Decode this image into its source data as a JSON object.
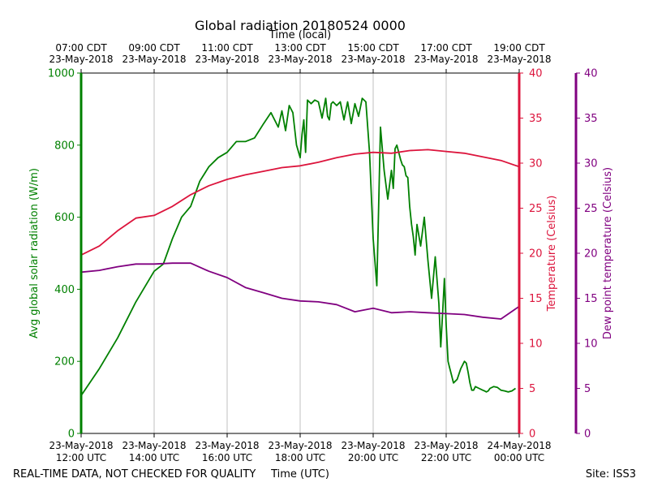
{
  "chart_data": {
    "type": "line",
    "title": "Global radiation 20180524 0000",
    "top_axis_label": "Time (local)",
    "xlabel": "Time (UTC)",
    "footer_left": "REAL-TIME DATA, NOT CHECKED FOR QUALITY",
    "footer_right": "Site: ISS3",
    "x_unit": "hours UTC",
    "xlim": [
      12,
      24
    ],
    "x_ticks": [
      {
        "x": 12,
        "bottom": [
          "23-May-2018",
          "12:00 UTC"
        ],
        "top": [
          "07:00 CDT",
          "23-May-2018"
        ]
      },
      {
        "x": 14,
        "bottom": [
          "23-May-2018",
          "14:00 UTC"
        ],
        "top": [
          "09:00 CDT",
          "23-May-2018"
        ]
      },
      {
        "x": 16,
        "bottom": [
          "23-May-2018",
          "16:00 UTC"
        ],
        "top": [
          "11:00 CDT",
          "23-May-2018"
        ]
      },
      {
        "x": 18,
        "bottom": [
          "23-May-2018",
          "18:00 UTC"
        ],
        "top": [
          "13:00 CDT",
          "23-May-2018"
        ]
      },
      {
        "x": 20,
        "bottom": [
          "23-May-2018",
          "20:00 UTC"
        ],
        "top": [
          "15:00 CDT",
          "23-May-2018"
        ]
      },
      {
        "x": 22,
        "bottom": [
          "23-May-2018",
          "22:00 UTC"
        ],
        "top": [
          "17:00 CDT",
          "23-May-2018"
        ]
      },
      {
        "x": 24,
        "bottom": [
          "24-May-2018",
          "00:00 UTC"
        ],
        "top": [
          "19:00 CDT",
          "23-May-2018"
        ]
      }
    ],
    "grid": "vertical",
    "axes": {
      "radiation": {
        "label": "Avg global solar radiation (W/m)",
        "ylim": [
          0,
          1000
        ],
        "ticks": [
          0,
          200,
          400,
          600,
          800,
          1000
        ],
        "color": "#008000",
        "side": "left"
      },
      "temperature": {
        "label": "Temperature (Celsius)",
        "ylim": [
          0,
          40
        ],
        "ticks": [
          0,
          5,
          10,
          15,
          20,
          25,
          30,
          35,
          40
        ],
        "color": "#dc143c",
        "side": "right"
      },
      "dewpoint": {
        "label": "Dew point temperature (Celsius)",
        "ylim": [
          0,
          40
        ],
        "ticks": [
          0,
          5,
          10,
          15,
          20,
          25,
          30,
          35,
          40
        ],
        "color": "#800080",
        "side": "right-outer"
      }
    },
    "series": [
      {
        "axis": "radiation",
        "color": "#008000",
        "x": [
          12.0,
          12.5,
          13.0,
          13.5,
          14.0,
          14.25,
          14.5,
          14.75,
          15.0,
          15.25,
          15.5,
          15.75,
          16.0,
          16.25,
          16.5,
          16.75,
          17.0,
          17.2,
          17.4,
          17.5,
          17.6,
          17.7,
          17.8,
          17.9,
          18.0,
          18.05,
          18.1,
          18.15,
          18.2,
          18.3,
          18.4,
          18.5,
          18.6,
          18.7,
          18.75,
          18.8,
          18.85,
          18.9,
          19.0,
          19.1,
          19.2,
          19.3,
          19.4,
          19.5,
          19.6,
          19.7,
          19.8,
          19.9,
          20.0,
          20.1,
          20.2,
          20.3,
          20.4,
          20.5,
          20.55,
          20.6,
          20.65,
          20.7,
          20.75,
          20.8,
          20.85,
          20.9,
          20.95,
          21.0,
          21.05,
          21.1,
          21.15,
          21.2,
          21.3,
          21.4,
          21.5,
          21.6,
          21.7,
          21.8,
          21.85,
          21.9,
          21.95,
          22.0,
          22.05,
          22.1,
          22.15,
          22.2,
          22.3,
          22.4,
          22.5,
          22.55,
          22.6,
          22.65,
          22.7,
          22.75,
          22.8,
          22.9,
          23.0,
          23.05,
          23.1,
          23.15,
          23.2,
          23.3,
          23.4,
          23.5,
          23.6,
          23.7,
          23.8,
          23.9
        ],
        "values": [
          105,
          180,
          265,
          365,
          450,
          470,
          540,
          600,
          630,
          700,
          740,
          765,
          780,
          810,
          810,
          820,
          860,
          890,
          850,
          895,
          840,
          910,
          890,
          800,
          765,
          830,
          870,
          780,
          925,
          915,
          925,
          920,
          875,
          930,
          880,
          870,
          915,
          920,
          910,
          920,
          870,
          920,
          860,
          915,
          880,
          930,
          920,
          780,
          540,
          410,
          850,
          730,
          650,
          730,
          680,
          790,
          800,
          780,
          760,
          745,
          740,
          715,
          710,
          630,
          580,
          545,
          495,
          580,
          520,
          600,
          480,
          375,
          490,
          360,
          240,
          330,
          430,
          300,
          200,
          180,
          160,
          140,
          150,
          180,
          200,
          195,
          170,
          140,
          120,
          120,
          130,
          125,
          120,
          118,
          115,
          118,
          125,
          130,
          128,
          120,
          118,
          115,
          118,
          125
        ],
        "values_note": "smoothed"
      },
      {
        "axis": "temperature",
        "color": "#dc143c",
        "x": [
          12.0,
          12.5,
          13.0,
          13.5,
          14.0,
          14.5,
          15.0,
          15.5,
          16.0,
          16.5,
          17.0,
          17.5,
          18.0,
          18.5,
          19.0,
          19.5,
          20.0,
          20.5,
          21.0,
          21.5,
          22.0,
          22.5,
          23.0,
          23.5,
          24.0
        ],
        "values": [
          19.8,
          20.8,
          22.5,
          23.9,
          24.2,
          25.2,
          26.5,
          27.5,
          28.2,
          28.7,
          29.1,
          29.5,
          29.7,
          30.1,
          30.6,
          31.0,
          31.2,
          31.1,
          31.4,
          31.5,
          31.3,
          31.1,
          30.7,
          30.3,
          29.6
        ]
      },
      {
        "axis": "dewpoint",
        "color": "#800080",
        "x": [
          12.0,
          12.5,
          13.0,
          13.5,
          14.0,
          14.5,
          15.0,
          15.5,
          16.0,
          16.5,
          17.0,
          17.5,
          18.0,
          18.5,
          19.0,
          19.5,
          20.0,
          20.5,
          21.0,
          21.5,
          22.0,
          22.5,
          23.0,
          23.5,
          24.0
        ],
        "values": [
          17.9,
          18.1,
          18.5,
          18.8,
          18.8,
          18.9,
          18.9,
          18.0,
          17.3,
          16.2,
          15.6,
          15.0,
          14.7,
          14.6,
          14.3,
          13.5,
          13.9,
          13.4,
          13.5,
          13.4,
          13.3,
          13.2,
          12.9,
          12.7,
          14.1
        ]
      }
    ]
  }
}
